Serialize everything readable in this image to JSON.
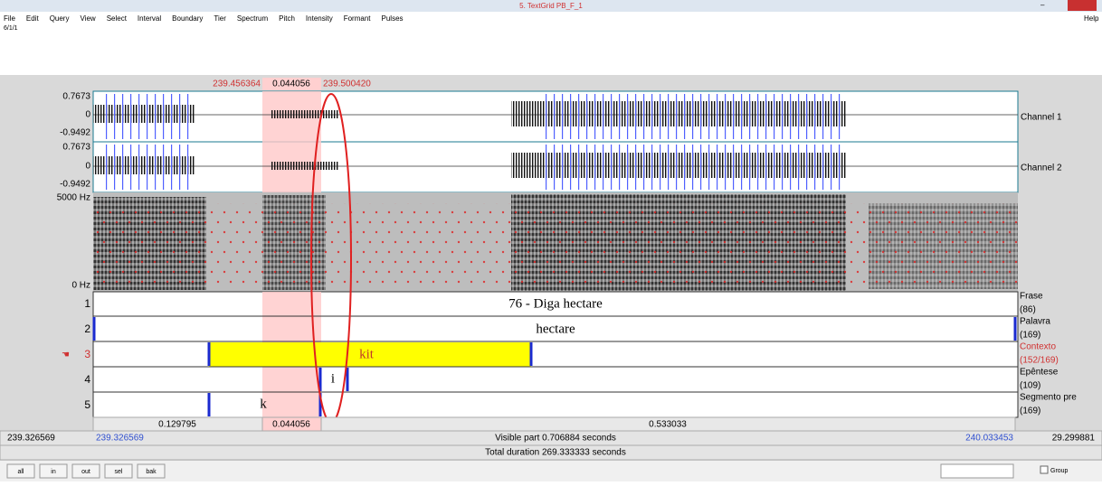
{
  "window": {
    "title": "5. TextGrid PB_F_1",
    "menu": [
      "File",
      "Edit",
      "Query",
      "View",
      "Select",
      "Interval",
      "Boundary",
      "Tier",
      "Spectrum",
      "Pitch",
      "Intensity",
      "Formant",
      "Pulses"
    ],
    "help": "Help",
    "status": "6/1/1"
  },
  "selection": {
    "start": "239.456364",
    "duration": "0.044056",
    "end": "239.500420"
  },
  "channels": [
    {
      "max": "0.7673",
      "zero": "0",
      "min": "-0.9492",
      "name": "Channel 1"
    },
    {
      "max": "0.7673",
      "zero": "0",
      "min": "-0.9492",
      "name": "Channel 2"
    }
  ],
  "spectrogram": {
    "top": "5000 Hz",
    "bottom": "0 Hz"
  },
  "tiers": [
    {
      "number": "1",
      "name": "Frase",
      "count": "(86)",
      "intervals": [
        "76 - Diga hectare"
      ]
    },
    {
      "number": "2",
      "name": "Palavra",
      "count": "(169)",
      "intervals": [
        "hectare"
      ]
    },
    {
      "number": "3",
      "name": "Contexto",
      "count": "(152/169)",
      "intervals": [
        "kit"
      ]
    },
    {
      "number": "4",
      "name": "Epêntese",
      "count": "(109)",
      "intervals": [
        "i"
      ]
    },
    {
      "number": "5",
      "name": "Segmento pre",
      "count": "(169)",
      "intervals": [
        "k"
      ]
    }
  ],
  "durations": [
    "0.129795",
    "0.044056",
    "0.533033"
  ],
  "footer": {
    "window_start": "239.326569",
    "visible_start": "239.326569",
    "visible_part": "Visible part 0.706884 seconds",
    "visible_end": "240.033453",
    "window_end": "29.299881",
    "total": "Total duration 269.333333 seconds"
  },
  "buttons": [
    "all",
    "in",
    "out",
    "sel",
    "bak"
  ],
  "group": "Group"
}
